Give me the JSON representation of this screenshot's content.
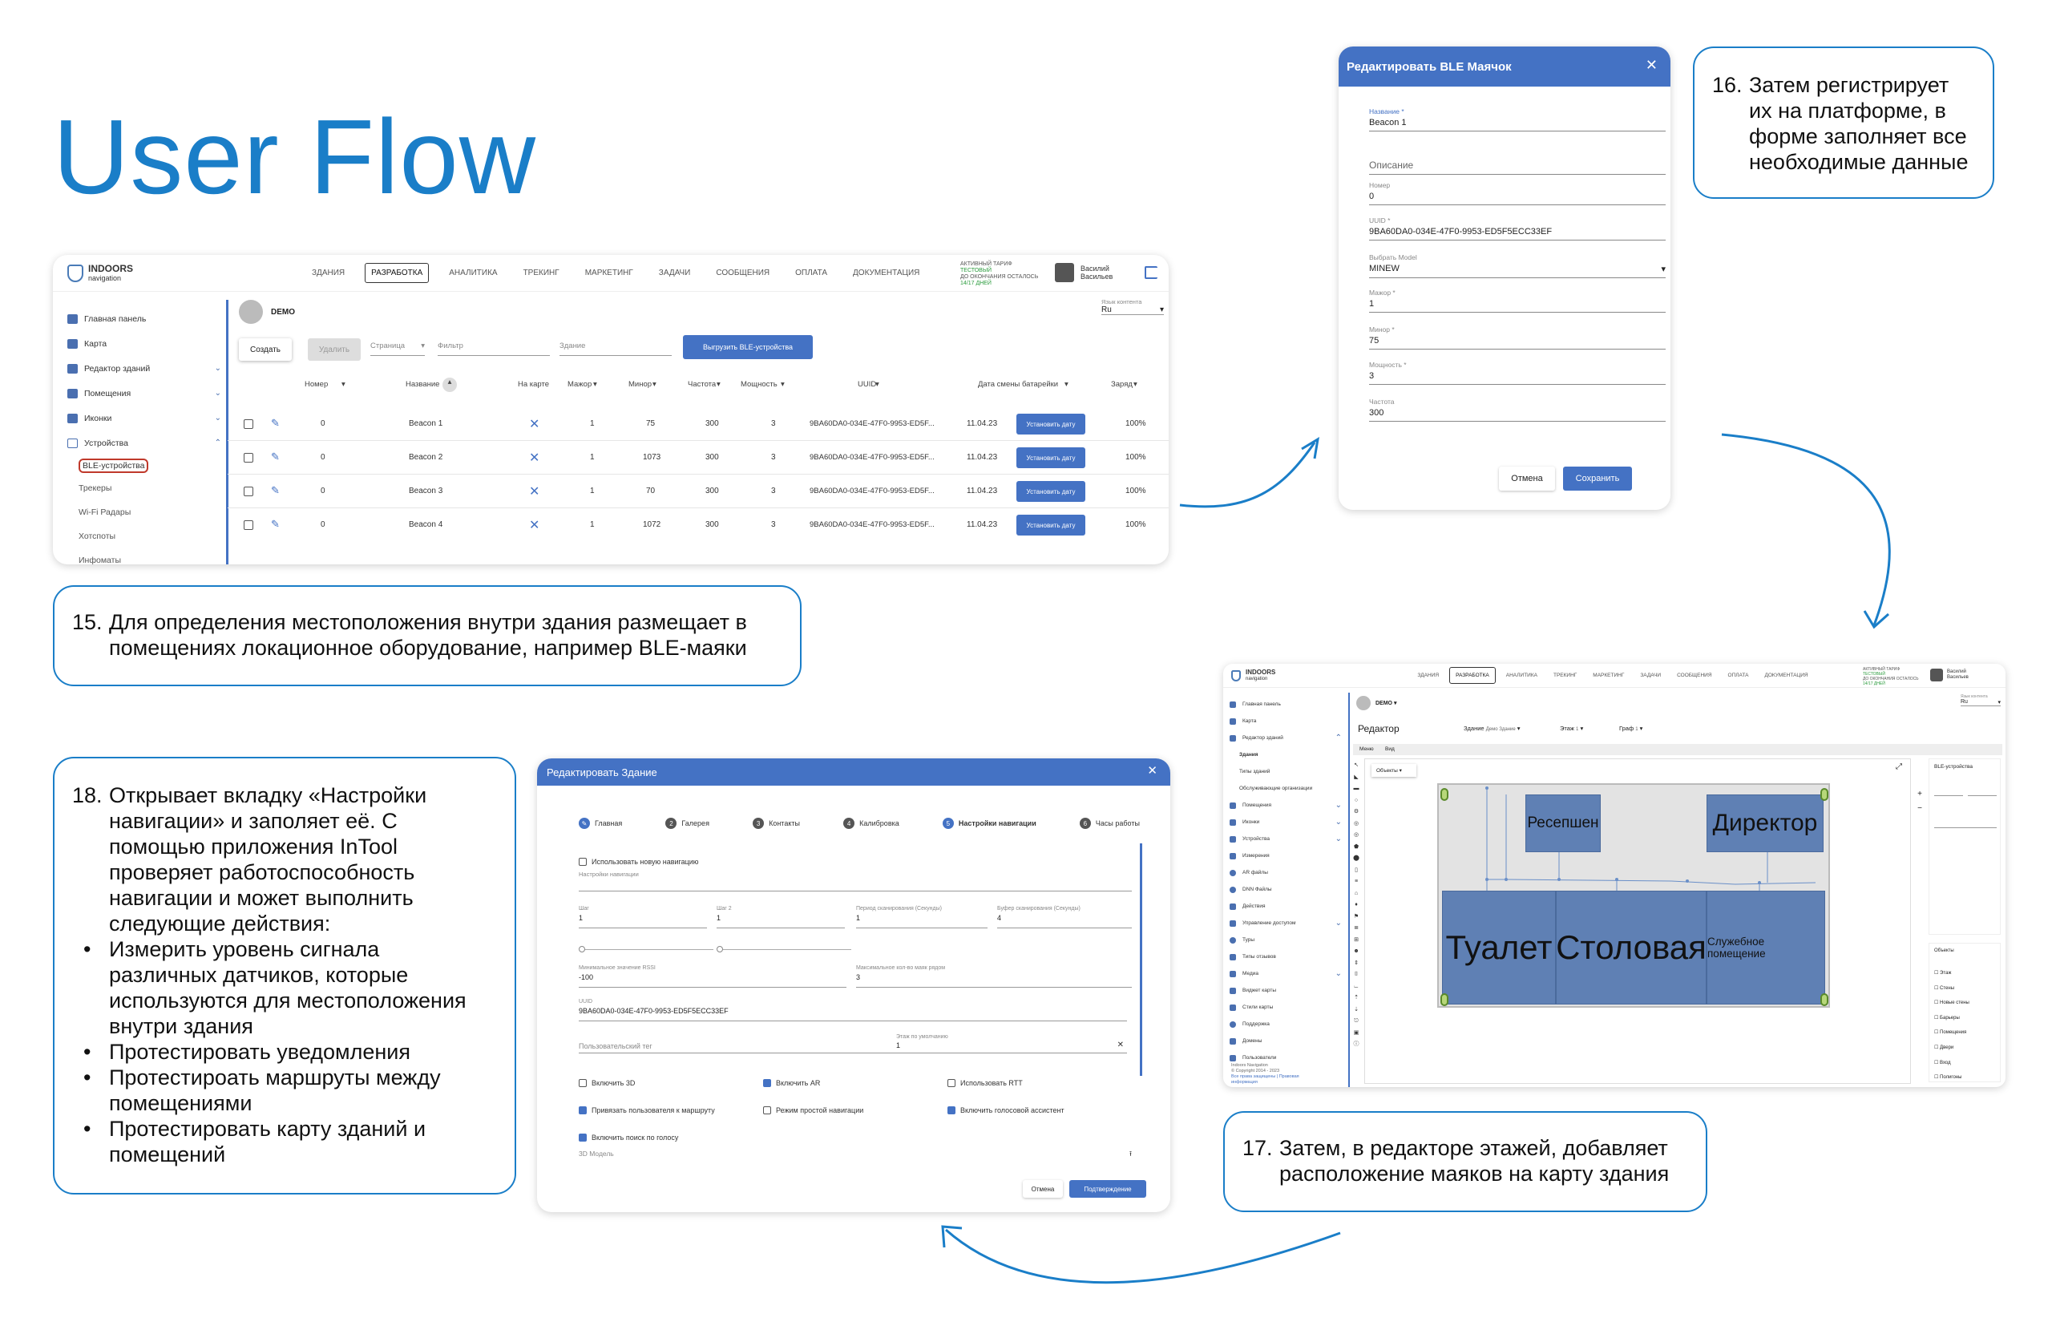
{
  "title": "User Flow",
  "notes": {
    "n15": {
      "num": "15.",
      "l1": "Для определения местоположения внутри здания размещает в",
      "l2": "помещениях локационное оборудование, например BLE-маяки"
    },
    "n16": {
      "num": "16.",
      "l1": "Затем регистрирует",
      "l2": "их на платформе, в",
      "l3": "форме заполняет все",
      "l4": "необходимые данные"
    },
    "n17": {
      "num": "17.",
      "l1": "Затем, в редакторе этажей, добавляет",
      "l2": "расположение маяков на карту здания"
    },
    "n18": {
      "num": "18.",
      "lines": [
        "Открывает вкладку «Настройки",
        "навигации» и заполяет её. С",
        "помощью приложения InTool",
        "проверяет работоспособность",
        "навигации и может выполнить",
        "следующие действия:"
      ],
      "bullets": [
        [
          "Измерить уровень сигнала",
          "различных датчиков, которые",
          "используются для местоположения",
          "внутри здания"
        ],
        [
          "Протестировать уведомления"
        ],
        [
          "Протестироать маршруты между",
          "помещениями"
        ],
        [
          "Протестировать карту зданий и",
          "помещений"
        ]
      ]
    }
  },
  "app": {
    "logo": "INDOORS",
    "logo_sub": "navigation",
    "nav": [
      "ЗДАНИЯ",
      "РАЗРАБОТКА",
      "АНАЛИТИКА",
      "ТРЕКИНГ",
      "МАРКЕТИНГ",
      "ЗАДАЧИ",
      "СООБЩЕНИЯ",
      "ОПЛАТА",
      "ДОКУМЕНТАЦИЯ"
    ],
    "tarif": [
      "АКТИВНЫЙ ТАРИФ",
      "ТЕСТОВЫЙ",
      "ДО ОКОНЧАНИЯ ОСТАЛОСЬ",
      "14/17 ДНЕЙ"
    ],
    "user": [
      "Василий",
      "Васильев"
    ],
    "side": [
      "Главная панель",
      "Карта",
      "Редактор зданий",
      "Помещения",
      "Иконки",
      "Устройства",
      "BLE-устройства",
      "Трекеры",
      "Wi-Fi Радары",
      "Хотспоты",
      "Инфоматы"
    ],
    "org": "DEMO",
    "lang_label": "Язык контента",
    "lang": "Ru",
    "btn_create": "Создать",
    "btn_delete": "Удалить",
    "page": "Страница",
    "filter": "Фильтр",
    "building": "Здание",
    "btn_export": "Выгрузить BLE-устройства",
    "cols": [
      "Номер",
      "Название",
      "На карте",
      "Мажор",
      "Минор",
      "Частота",
      "Мощность",
      "UUID",
      "Дата смены батарейки",
      "Заряд"
    ],
    "rows": [
      {
        "num": "0",
        "name": "Beacon 1",
        "major": "1",
        "minor": "75",
        "freq": "300",
        "power": "3",
        "uuid": "9BA60DA0-034E-47F0-9953-ED5F...",
        "date": "11.04.23",
        "btn": "Установить дату",
        "charge": "100%"
      },
      {
        "num": "0",
        "name": "Beacon 2",
        "major": "1",
        "minor": "1073",
        "freq": "300",
        "power": "3",
        "uuid": "9BA60DA0-034E-47F0-9953-ED5F...",
        "date": "11.04.23",
        "btn": "Установить дату",
        "charge": "100%"
      },
      {
        "num": "0",
        "name": "Beacon 3",
        "major": "1",
        "minor": "70",
        "freq": "300",
        "power": "3",
        "uuid": "9BA60DA0-034E-47F0-9953-ED5F...",
        "date": "11.04.23",
        "btn": "Установить дату",
        "charge": "100%"
      },
      {
        "num": "0",
        "name": "Beacon 4",
        "major": "1",
        "minor": "1072",
        "freq": "300",
        "power": "3",
        "uuid": "9BA60DA0-034E-47F0-9953-ED5F...",
        "date": "11.04.23",
        "btn": "Установить дату",
        "charge": "100%"
      }
    ]
  },
  "ble": {
    "title": "Редактировать BLE Маячок",
    "fields": [
      {
        "label": "Название *",
        "value": "Beacon 1"
      },
      {
        "label": "",
        "value": "Описание"
      },
      {
        "label": "Номер",
        "value": "0"
      },
      {
        "label": "UUID *",
        "value": "9BA60DA0-034E-47F0-9953-ED5F5ECC33EF"
      },
      {
        "label": "Выбрать Model",
        "value": "MINEW"
      },
      {
        "label": "Мажор *",
        "value": "1"
      },
      {
        "label": "Минор *",
        "value": "75"
      },
      {
        "label": "Мощность *",
        "value": "3"
      },
      {
        "label": "Частота",
        "value": "300"
      }
    ],
    "cancel": "Отмена",
    "save": "Сохранить"
  },
  "building": {
    "title": "Редактировать Здание",
    "steps": [
      "Главная",
      "Галерея",
      "Контакты",
      "Калибровка",
      "Настройки навигации",
      "Часы работы"
    ],
    "step_nums": [
      "1",
      "2",
      "3",
      "4",
      "5",
      "6"
    ],
    "use_new": "Использовать новую навигацию",
    "nav_settings": "Настройки навигации",
    "f": {
      "step": "Шаг",
      "step_val": "1",
      "step2": "Шаг 2",
      "step2_val": "1",
      "period": "Период сканирования (Секунды)",
      "period_val": "1",
      "buffer": "Буфер сканирования (Секунды)",
      "buffer_val": "4",
      "rssi": "Минимальное значение RSSI",
      "rssi_val": "-100",
      "max": "Максимальное кол-во маяк рядом",
      "max_val": "3",
      "uuid": "UUID",
      "uuid_val": "9BA60DA0-034E-47F0-9953-ED5F5ECC33EF",
      "floor": "Этаж по умолчанию",
      "floor_val": "1",
      "tag": "Пользовательский тег"
    },
    "checks": [
      "Включить 3D",
      "Включить AR",
      "Использовать RTT",
      "Привязать пользователя к маршруту",
      "Режим простой навигации",
      "Включить голосовой ассистент",
      "Включить поиск по голосу"
    ],
    "model": "3D Модель",
    "cancel": "Отмена",
    "confirm": "Подтверждение"
  },
  "editor": {
    "heading": "Редактор",
    "building_label": "Здание",
    "building_val": "Демо Здание",
    "floor_label": "Этаж",
    "floor_val": "1",
    "graph_label": "Граф",
    "graph_val": "1",
    "tabs": [
      "Меню",
      "Вид"
    ],
    "objects_dd": "Объекты",
    "side": [
      "Главная панель",
      "Карта",
      "Редактор зданий",
      "Здания",
      "Типы зданий",
      "Обслуживающие организации",
      "Помещения",
      "Иконки",
      "Устройства",
      "Измерения",
      "AR файлы",
      "DNN Файлы",
      "Действия",
      "Управление доступом",
      "Туры",
      "Типы отзывов",
      "Медиа",
      "Виджет карты",
      "Стили карты",
      "Поддержка",
      "Домены",
      "Пользователи"
    ],
    "footer": [
      "Indoors Navigation",
      "© Copyright 2014 - 2023",
      "Все права защищены | Правовая",
      "информация"
    ],
    "rooms": [
      "Ресепшен",
      "Директор",
      "Туалет",
      "Столовая",
      "Служебное помещение"
    ],
    "right_title": "BLE-устройства",
    "objects_title": "Объекты",
    "layers": [
      "Этаж",
      "Стены",
      "Новые стены",
      "Барьеры",
      "Помещения",
      "Двери",
      "Вход",
      "Полигоны"
    ]
  }
}
